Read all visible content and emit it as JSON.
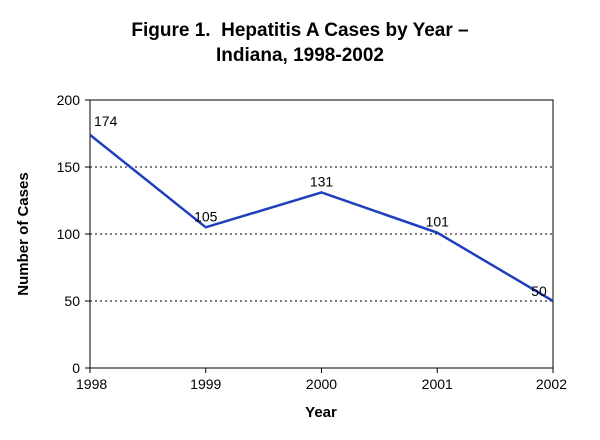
{
  "chart_data": {
    "type": "line",
    "title_line1": "Figure 1.  Hepatitis A Cases by Year –",
    "title_line2": "Indiana, 1998-2002",
    "xlabel": "Year",
    "ylabel": "Number of Cases",
    "categories": [
      "1998",
      "1999",
      "2000",
      "2001",
      "2002"
    ],
    "series": [
      {
        "name": "Hepatitis A Cases",
        "values": [
          174,
          105,
          131,
          101,
          50
        ]
      }
    ],
    "data_labels": [
      "174",
      "105",
      "131",
      "101",
      "50"
    ],
    "yticks": [
      "0",
      "50",
      "100",
      "150",
      "200"
    ],
    "ylim": [
      0,
      200
    ],
    "grid": "horizontal dotted",
    "line_color": "#1f3fbf"
  }
}
